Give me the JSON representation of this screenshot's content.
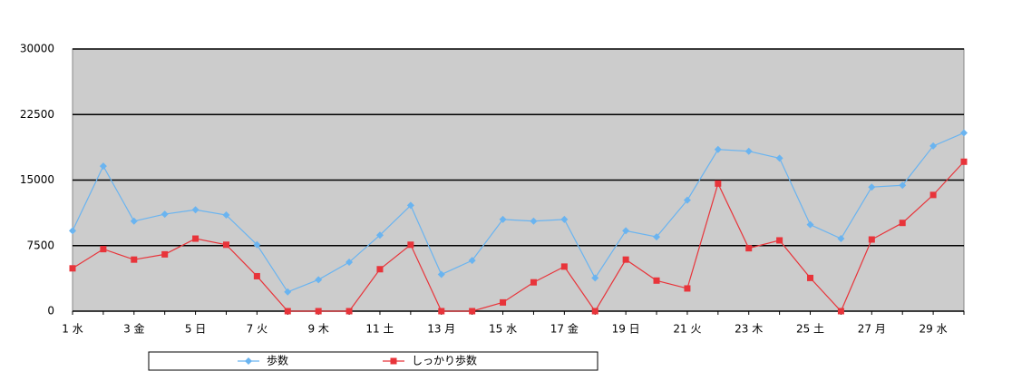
{
  "chart_data": {
    "type": "line",
    "categories": [
      "1 水",
      null,
      "3 金",
      null,
      "5 日",
      null,
      "7 火",
      null,
      "9 木",
      null,
      "11 土",
      null,
      "13 月",
      null,
      "15 水",
      null,
      "17 金",
      null,
      "19 日",
      null,
      "21 火",
      null,
      "23 木",
      null,
      "25 土",
      null,
      "27 月",
      null,
      "29 水",
      null
    ],
    "series": [
      {
        "name": "歩数",
        "color": "#6ab4f0",
        "marker": "diamond",
        "values": [
          9200,
          16600,
          10300,
          11100,
          11600,
          11000,
          7600,
          2200,
          3600,
          5600,
          8700,
          12100,
          4200,
          5800,
          10500,
          10300,
          10500,
          3800,
          9200,
          8500,
          12700,
          18500,
          18300,
          17500,
          9900,
          8300,
          14200,
          14400,
          18900,
          20400
        ]
      },
      {
        "name": "しっかり歩数",
        "color": "#e8343a",
        "marker": "square",
        "values": [
          4900,
          7100,
          5900,
          6500,
          8300,
          7600,
          4000,
          0,
          0,
          0,
          4800,
          7600,
          0,
          0,
          1000,
          3300,
          5100,
          0,
          5900,
          3500,
          2600,
          14600,
          7200,
          8100,
          3800,
          0,
          8200,
          10100,
          13300,
          17100
        ]
      }
    ],
    "ylim": [
      0,
      30000
    ],
    "yticks": [
      0,
      7500,
      15000,
      22500,
      30000
    ],
    "grid": true,
    "plot_background": "#cccccc",
    "legend": "bottom"
  }
}
